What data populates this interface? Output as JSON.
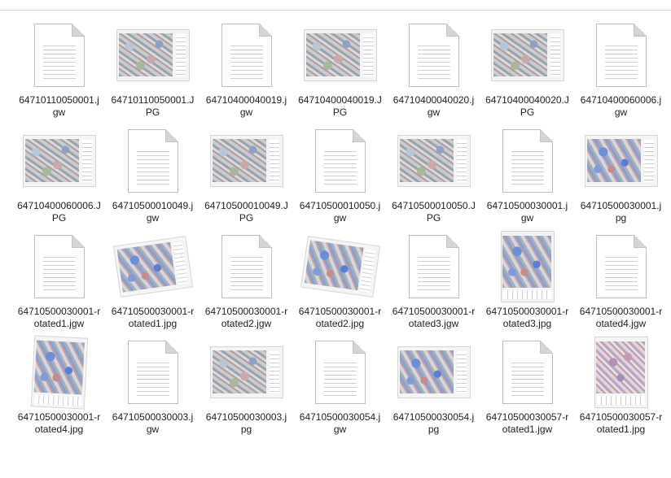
{
  "files": [
    {
      "name": "64710110050001.jgw",
      "kind": "doc"
    },
    {
      "name": "64710110050001.JPG",
      "kind": "map",
      "style": "gray"
    },
    {
      "name": "64710400040019.jgw",
      "kind": "doc"
    },
    {
      "name": "64710400040019.JPG",
      "kind": "map",
      "style": "gray"
    },
    {
      "name": "64710400040020.jgw",
      "kind": "doc"
    },
    {
      "name": "64710400040020.JPG",
      "kind": "map",
      "style": "gray"
    },
    {
      "name": "64710400060006.jgw",
      "kind": "doc"
    },
    {
      "name": "64710400060006.JPG",
      "kind": "map",
      "style": "gray"
    },
    {
      "name": "64710500010049.jgw",
      "kind": "doc"
    },
    {
      "name": "64710500010049.JPG",
      "kind": "map",
      "style": "gray"
    },
    {
      "name": "64710500010050.jgw",
      "kind": "doc"
    },
    {
      "name": "64710500010050.JPG",
      "kind": "map",
      "style": "gray"
    },
    {
      "name": "64710500030001.jgw",
      "kind": "doc"
    },
    {
      "name": "64710500030001.jpg",
      "kind": "map",
      "style": "blue"
    },
    {
      "name": "64710500030001-rotated1.jgw",
      "kind": "doc"
    },
    {
      "name": "64710500030001-rotated1.jpg",
      "kind": "map",
      "style": "blue",
      "rotate": -8
    },
    {
      "name": "64710500030001-rotated2.jgw",
      "kind": "doc"
    },
    {
      "name": "64710500030001-rotated2.jpg",
      "kind": "map",
      "style": "blue",
      "rotate": 8
    },
    {
      "name": "64710500030001-rotated3.jgw",
      "kind": "doc"
    },
    {
      "name": "64710500030001-rotated3.jpg",
      "kind": "map",
      "style": "blue",
      "portrait": true
    },
    {
      "name": "64710500030001-rotated4.jgw",
      "kind": "doc"
    },
    {
      "name": "64710500030001-rotated4.jpg",
      "kind": "map",
      "style": "blue",
      "portrait": true,
      "rotate": 3
    },
    {
      "name": "64710500030003.jgw",
      "kind": "doc"
    },
    {
      "name": "64710500030003.jpg",
      "kind": "map",
      "style": "gray"
    },
    {
      "name": "64710500030054.jgw",
      "kind": "doc"
    },
    {
      "name": "64710500030054.jpg",
      "kind": "map",
      "style": "blue"
    },
    {
      "name": "64710500030057-rotated1.jgw",
      "kind": "doc"
    },
    {
      "name": "64710500030057-rotated1.jpg",
      "kind": "map",
      "style": "purple",
      "portrait": true
    }
  ]
}
